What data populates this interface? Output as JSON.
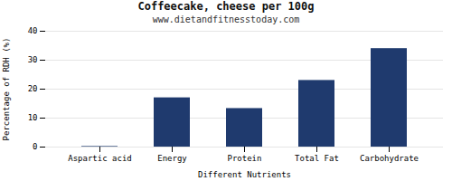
{
  "chart_data": {
    "type": "bar",
    "title": "Coffeecake, cheese per 100g",
    "subtitle": "www.dietandfitnesstoday.com",
    "xlabel": "Different Nutrients",
    "ylabel": "Percentage of RDH (%)",
    "categories": [
      "Aspartic acid",
      "Energy",
      "Protein",
      "Total Fat",
      "Carbohydrate"
    ],
    "values": [
      0.2,
      17.0,
      13.3,
      23.0,
      34.0
    ],
    "color": "#1f3a6e",
    "ylim": [
      0,
      40
    ],
    "yticks": [
      0,
      10,
      20,
      30,
      40
    ],
    "grid": true
  }
}
